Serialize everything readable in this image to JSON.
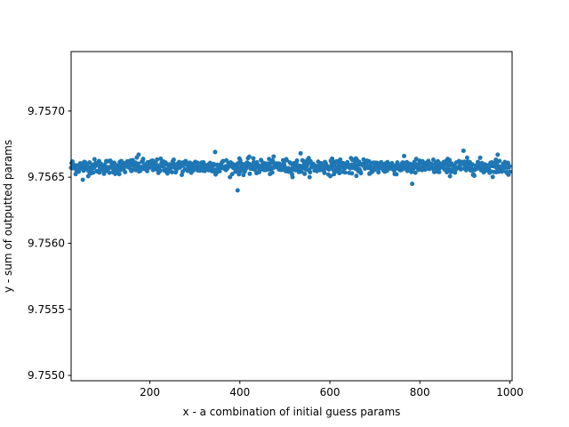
{
  "chart_data": {
    "type": "scatter",
    "title": "",
    "xlabel": "x - a combination of initial guess params",
    "ylabel": "y - sum of outputted params",
    "xlim": [
      25,
      1005
    ],
    "ylim": [
      9.75496,
      9.75745
    ],
    "xticks": [
      200,
      400,
      600,
      800,
      1000
    ],
    "xtick_labels": [
      "200",
      "400",
      "600",
      "800",
      "1000"
    ],
    "yticks": [
      9.755,
      9.7555,
      9.756,
      9.7565,
      9.757
    ],
    "ytick_labels": [
      "9.7550",
      "9.7555",
      "9.7560",
      "9.7565",
      "9.7570"
    ],
    "grid": false,
    "legend": false,
    "marker_color": "#1f77b4",
    "marker_size": 2.5,
    "series": [
      {
        "x_start": 25,
        "x_end": 1000,
        "count": 976,
        "center": 9.75658,
        "spread": 5e-05,
        "outliers": [
          {
            "x": 51,
            "y": 9.75648
          },
          {
            "x": 175,
            "y": 9.75667
          },
          {
            "x": 345,
            "y": 9.75669
          },
          {
            "x": 395,
            "y": 9.7564
          },
          {
            "x": 535,
            "y": 9.75668
          },
          {
            "x": 783,
            "y": 9.75645
          },
          {
            "x": 897,
            "y": 9.7567
          },
          {
            "x": 973,
            "y": 9.75667
          }
        ]
      }
    ]
  }
}
